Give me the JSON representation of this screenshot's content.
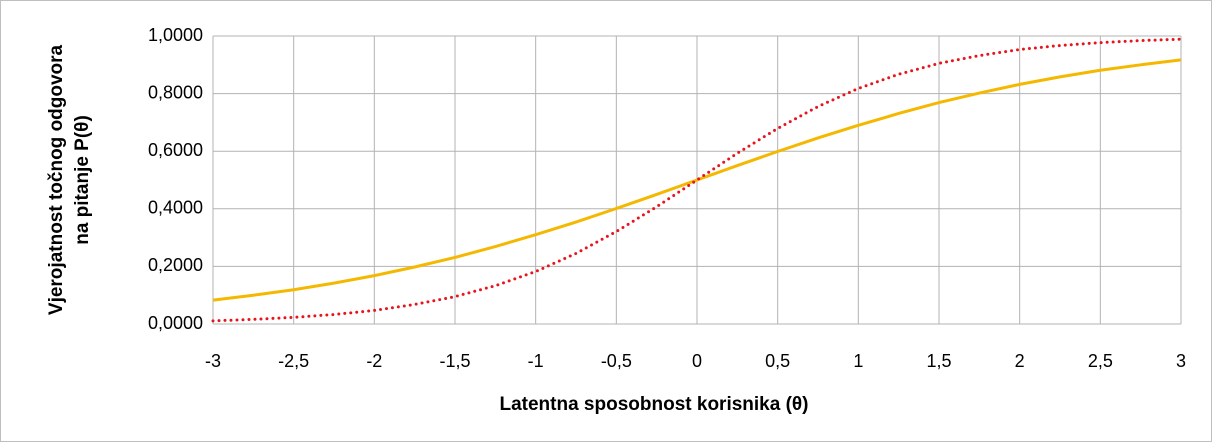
{
  "chart_data": {
    "type": "line",
    "xlabel": "Latentna sposobnost korisnika (θ)",
    "ylabel": [
      "Vjerojatnost točnog odgovora",
      "na pitanje P(θ)"
    ],
    "x": [
      -3,
      -2.75,
      -2.5,
      -2.25,
      -2,
      -1.75,
      -1.5,
      -1.25,
      -1,
      -0.75,
      -0.5,
      -0.25,
      0,
      0.25,
      0.5,
      0.75,
      1,
      1.25,
      1.5,
      1.75,
      2,
      2.25,
      2.5,
      2.75,
      3
    ],
    "series": [
      {
        "color": "#f5b800",
        "dash": "solid",
        "values": [
          0.083,
          0.1,
          0.119,
          0.142,
          0.168,
          0.198,
          0.231,
          0.269,
          0.31,
          0.354,
          0.401,
          0.45,
          0.5,
          0.55,
          0.599,
          0.646,
          0.69,
          0.731,
          0.769,
          0.802,
          0.832,
          0.858,
          0.881,
          0.9,
          0.917
        ]
      },
      {
        "color": "#e8141c",
        "dash": "dotted",
        "values": [
          0.011,
          0.016,
          0.023,
          0.033,
          0.047,
          0.068,
          0.095,
          0.133,
          0.182,
          0.245,
          0.321,
          0.407,
          0.5,
          0.593,
          0.679,
          0.755,
          0.818,
          0.867,
          0.905,
          0.932,
          0.953,
          0.967,
          0.977,
          0.984,
          0.989
        ]
      }
    ],
    "xlim": [
      -3,
      3
    ],
    "xticks": [
      -3,
      {
        "value": -2.5,
        "label": "-2,5"
      },
      -2,
      {
        "value": -1.5,
        "label": "-1,5"
      },
      -1,
      {
        "value": -0.5,
        "label": "-0,5"
      },
      0,
      {
        "value": 0.5,
        "label": "0,5"
      },
      1,
      {
        "value": 1.5,
        "label": "1,5"
      },
      2,
      {
        "value": 2.5,
        "label": "2,5"
      },
      3
    ],
    "ylim": [
      0,
      1
    ],
    "yticks": [
      {
        "value": 0,
        "label": "0,0000"
      },
      {
        "value": 0.2,
        "label": "0,2000"
      },
      {
        "value": 0.4,
        "label": "0,4000"
      },
      {
        "value": 0.6,
        "label": "0,6000"
      },
      {
        "value": 0.8,
        "label": "0,8000"
      },
      {
        "value": 1,
        "label": "1,0000"
      }
    ],
    "grid": true
  }
}
